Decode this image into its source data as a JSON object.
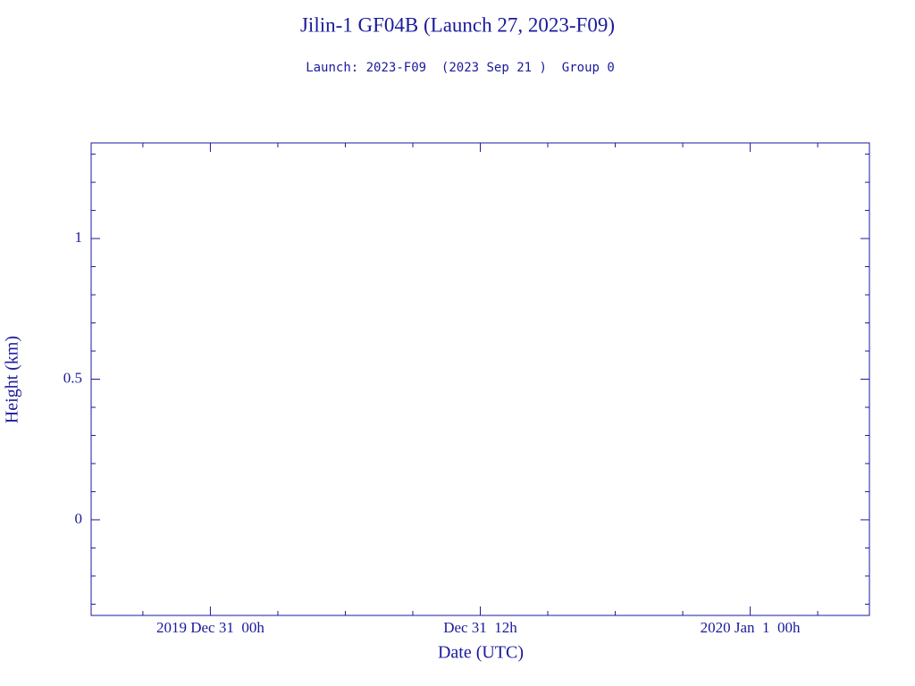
{
  "chart_data": {
    "type": "line",
    "title": "Jilin-1 GF04B (Launch 27, 2023-F09)",
    "subtitle": "Launch: 2023-F09  (2023 Sep 21 )  Group 0",
    "xlabel": "Date (UTC)",
    "ylabel": "Height (km)",
    "color": "#1a1a9c",
    "xlim": [
      -5.3,
      29.3
    ],
    "xticks": [
      {
        "value": 0,
        "label": "2019 Dec 31  00h"
      },
      {
        "value": 12,
        "label": "Dec 31  12h"
      },
      {
        "value": 24,
        "label": "2020 Jan  1  00h"
      }
    ],
    "xminorticks": [
      -3,
      3,
      6,
      9,
      15,
      18,
      21,
      27
    ],
    "ylim": [
      -0.34,
      1.34
    ],
    "yticks": [
      0,
      0.5,
      1
    ],
    "yminorticks": [
      -0.3,
      -0.2,
      -0.1,
      0.1,
      0.2,
      0.3,
      0.4,
      0.6,
      0.7,
      0.8,
      0.9,
      1.1,
      1.2,
      1.3
    ]
  }
}
